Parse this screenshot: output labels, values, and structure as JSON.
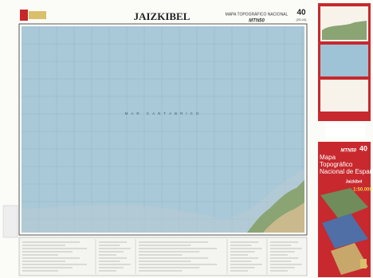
{
  "header": {
    "title": "JAIZKIBEL",
    "subtitle": "MAPA TOPOGRÁFICO NACIONAL",
    "series": "MTN50",
    "sheet": "40",
    "code": "(25-04)"
  },
  "map": {
    "sea_label": "MAR CANTÁBRICO"
  },
  "cover": {
    "series": "MTN50",
    "sheet": "40",
    "title_lines": [
      "Mapa",
      "Topográfico",
      "Nacional de España"
    ],
    "name": "Jaizkibel",
    "scale": "1:50.000"
  }
}
